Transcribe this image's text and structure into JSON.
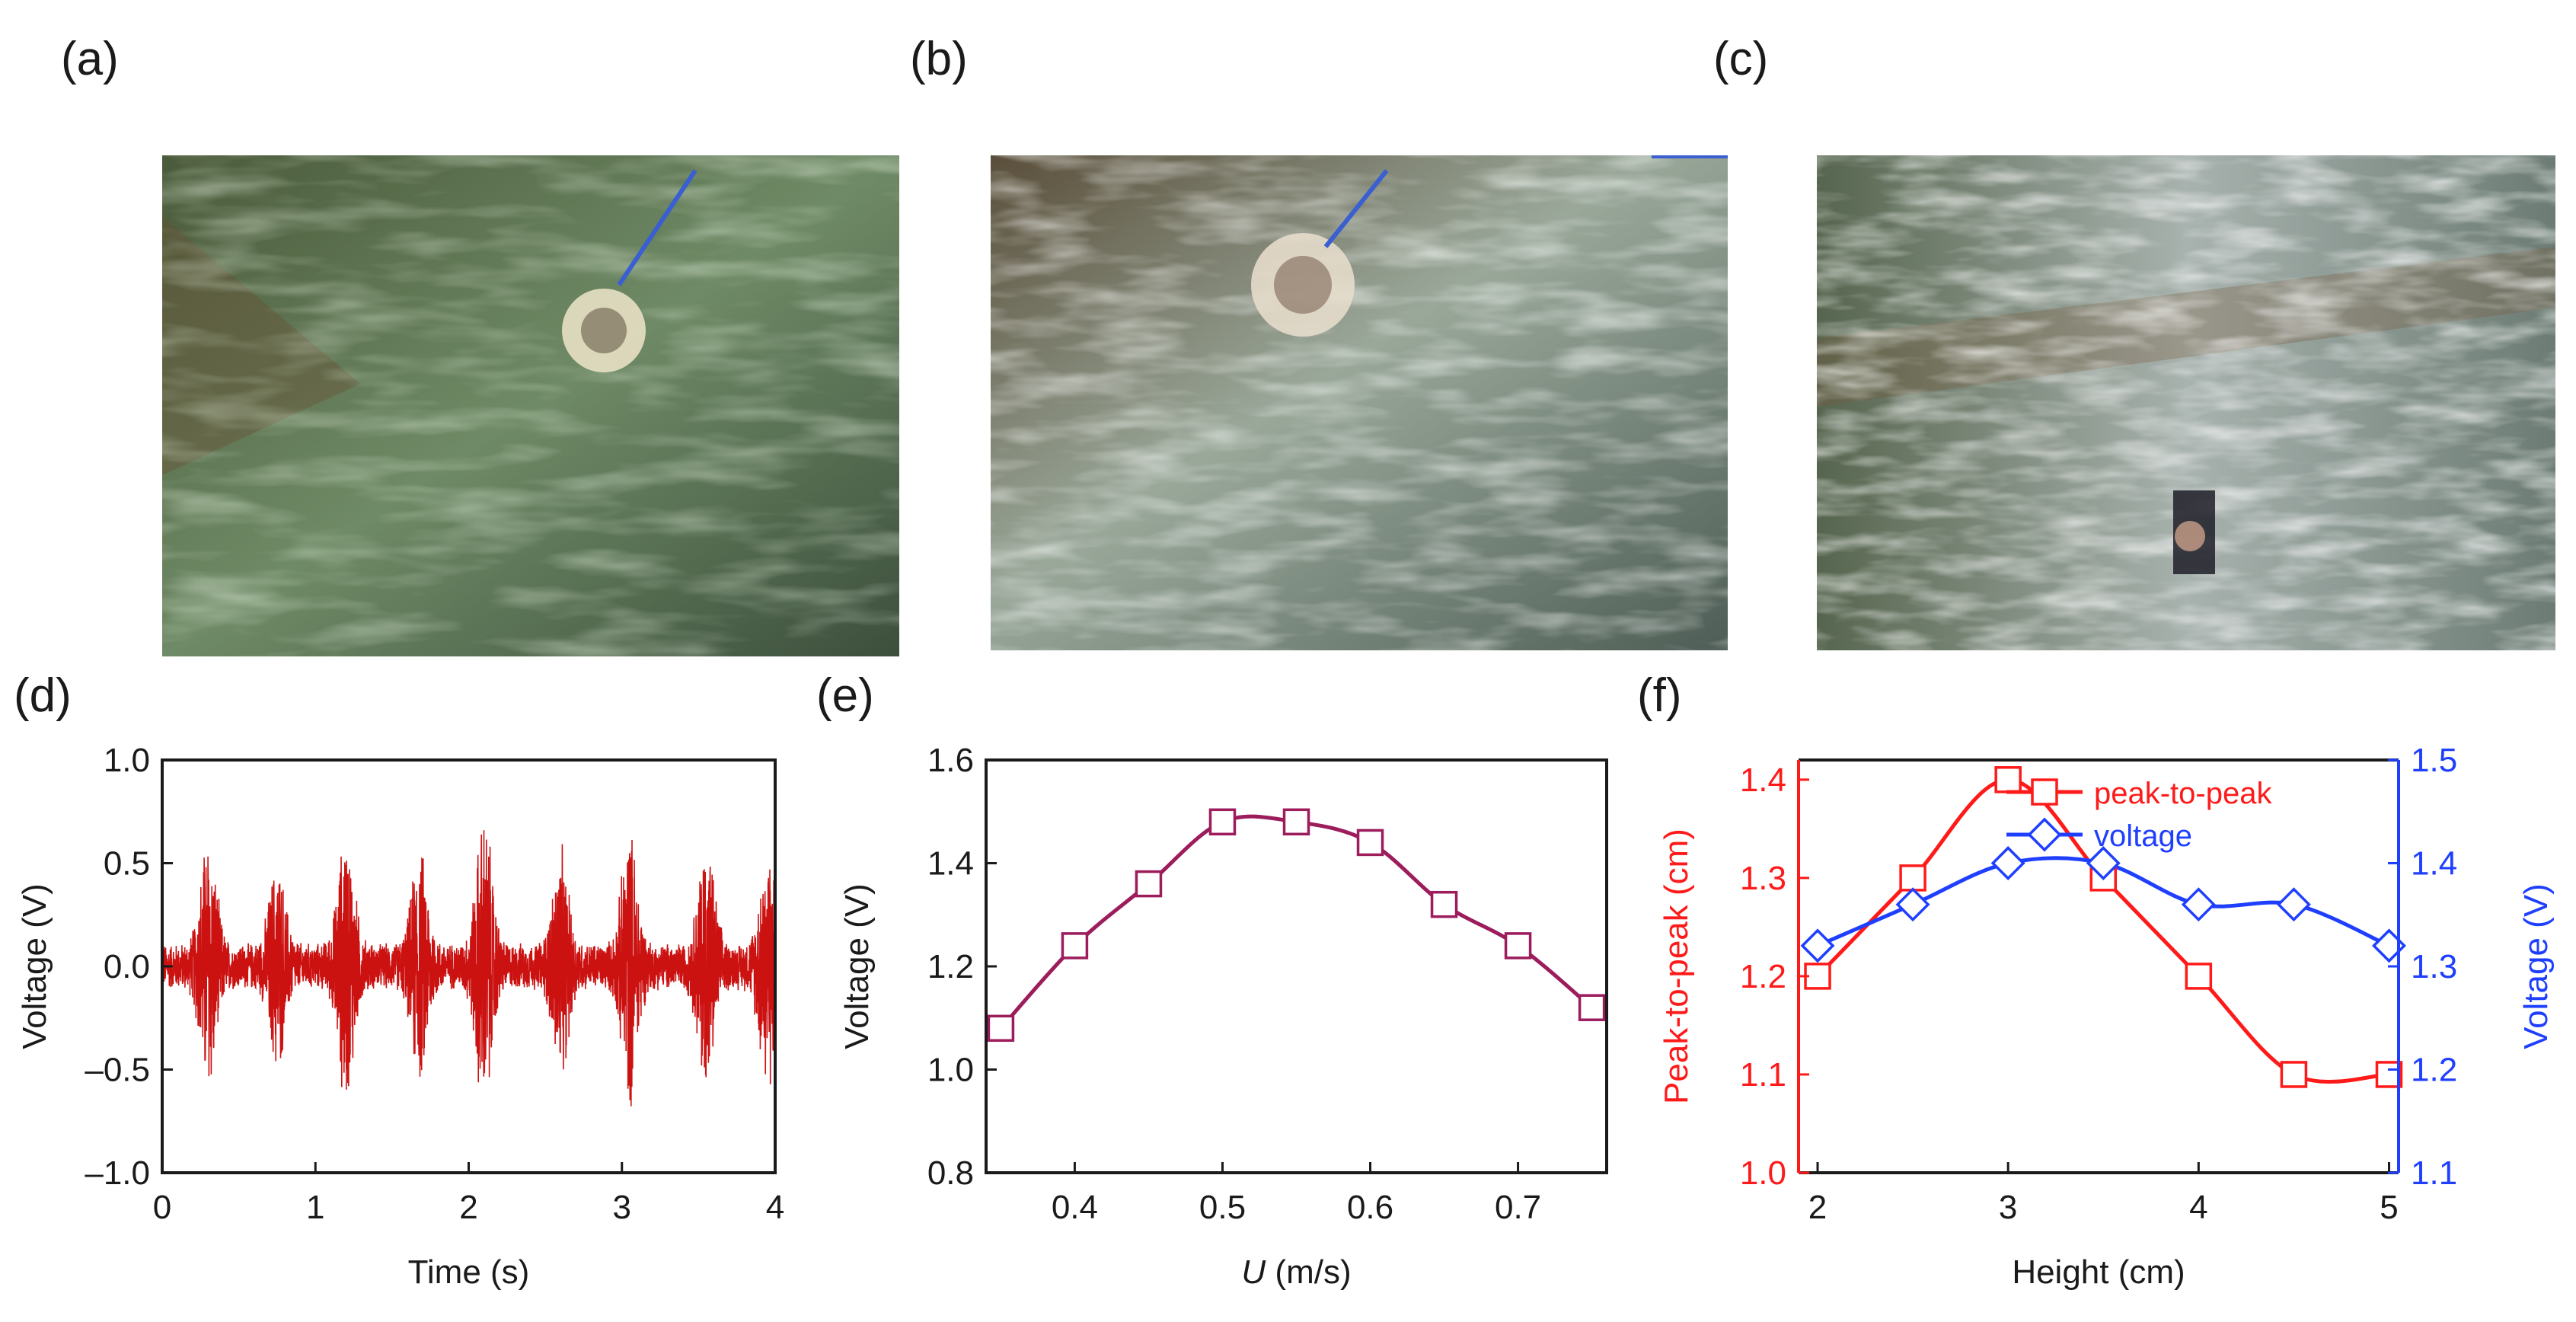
{
  "panels": {
    "a": "(a)",
    "b": "(b)",
    "c": "(c)",
    "d": "(d)",
    "e": "(e)",
    "f": "(f)"
  },
  "colors": {
    "d_signal": "#cc1111",
    "e_line": "#9c1c5c",
    "f_peak": "#ff1a1a",
    "f_voltage": "#1f3fff"
  },
  "chart_data": [
    {
      "id": "d",
      "type": "line",
      "xlabel": "Time (s)",
      "ylabel": "Voltage (V)",
      "xlim": [
        0,
        4
      ],
      "ylim": [
        -1.0,
        1.0
      ],
      "xticks": [
        "0",
        "1",
        "2",
        "3",
        "4"
      ],
      "yticks": [
        "–1.0",
        "–0.5",
        "0.0",
        "0.5",
        "1.0"
      ],
      "bursts": [
        {
          "t": 0.3,
          "amp": 0.6
        },
        {
          "t": 0.75,
          "amp": 0.45
        },
        {
          "t": 1.2,
          "amp": 0.62
        },
        {
          "t": 1.68,
          "amp": 0.52
        },
        {
          "t": 2.1,
          "amp": 0.7
        },
        {
          "t": 2.6,
          "amp": 0.5
        },
        {
          "t": 3.05,
          "amp": 0.62
        },
        {
          "t": 3.55,
          "amp": 0.58
        },
        {
          "t": 3.95,
          "amp": 0.55
        }
      ],
      "noise_amp": 0.12
    },
    {
      "id": "e",
      "type": "line",
      "xlabel_italic": "U",
      "xlabel_rest": " (m/s)",
      "ylabel": "Voltage (V)",
      "xlim": [
        0.34,
        0.76
      ],
      "ylim": [
        0.8,
        1.6
      ],
      "xticks": [
        "0.4",
        "0.5",
        "0.6",
        "0.7"
      ],
      "yticks": [
        "0.8",
        "1.0",
        "1.2",
        "1.4",
        "1.6"
      ],
      "x": [
        0.35,
        0.4,
        0.45,
        0.5,
        0.55,
        0.6,
        0.65,
        0.7,
        0.75
      ],
      "y": [
        1.08,
        1.24,
        1.36,
        1.48,
        1.48,
        1.44,
        1.32,
        1.24,
        1.12
      ]
    },
    {
      "id": "f",
      "type": "line",
      "xlabel": "Height (cm)",
      "ylabel_left": "Peak-to-peak (cm)",
      "ylabel_right": "Voltage (V)",
      "xlim": [
        1.9,
        5.05
      ],
      "ylim_left": [
        1.0,
        1.42
      ],
      "ylim_right": [
        1.1,
        1.5
      ],
      "xticks": [
        "2",
        "3",
        "4",
        "5"
      ],
      "yticks_left": [
        "1.0",
        "1.1",
        "1.2",
        "1.3",
        "1.4"
      ],
      "yticks_right": [
        "1.1",
        "1.2",
        "1.3",
        "1.4",
        "1.5"
      ],
      "x": [
        2,
        2.5,
        3,
        3.5,
        4,
        4.5,
        5
      ],
      "series": [
        {
          "name": "peak-to-peak",
          "axis": "left",
          "marker": "square",
          "values": [
            1.2,
            1.3,
            1.4,
            1.3,
            1.2,
            1.1,
            1.1
          ]
        },
        {
          "name": "voltage",
          "axis": "right",
          "marker": "diamond",
          "values": [
            1.32,
            1.36,
            1.4,
            1.4,
            1.36,
            1.36,
            1.32
          ]
        }
      ]
    }
  ]
}
